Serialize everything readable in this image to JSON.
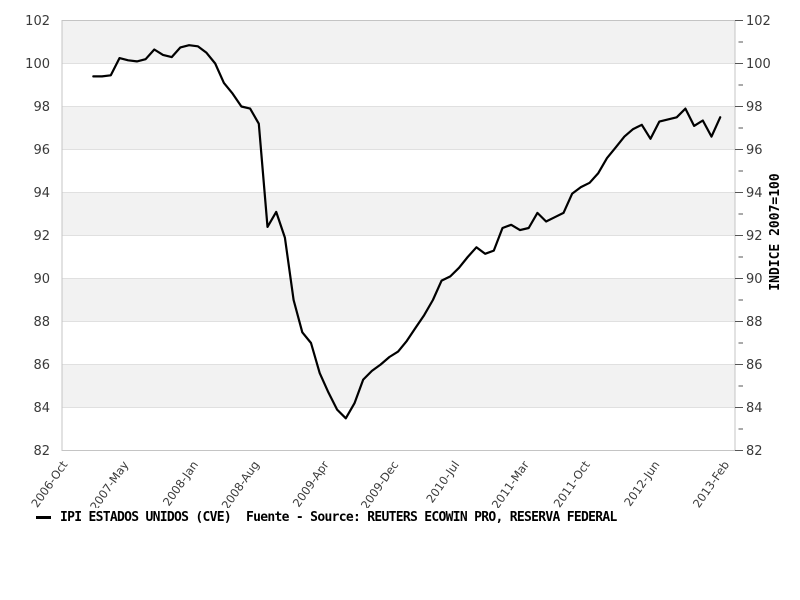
{
  "page": {
    "background": "#ffffff"
  },
  "legend": {
    "series_label": "IPI ESTADOS UNIDOS (CVE)",
    "source_label": "Fuente - Source: REUTERS ECOWIN PRO, RESERVA FEDERAL"
  },
  "chart_data": {
    "type": "line",
    "title": "",
    "right_axis_label": "INDICE 2007=100",
    "ylim": [
      82,
      102
    ],
    "y_tick_step": 2,
    "grid": "horizontal-bands-alternating",
    "legend_position": "bottom-left",
    "colors": {
      "band": "#f2f2f2",
      "grid": "#e0e0e0",
      "frame": "#c4c4c4",
      "tick": "#555555",
      "text": "#3a3a3a",
      "line": "#000000"
    },
    "x_axis": {
      "start_label": "2006-Oct",
      "end_label": "2013-Feb",
      "tick_labels": [
        "2006-Oct",
        "2007-May",
        "2008-Jan",
        "2008-Aug",
        "2009-Apr",
        "2009-Dec",
        "2010-Jul",
        "2011-Mar",
        "2011-Oct",
        "2012-Jun",
        "2013-Feb"
      ],
      "tick_month_offsets": [
        0,
        7,
        15,
        22,
        30,
        38,
        45,
        53,
        60,
        68,
        76
      ],
      "axis_month_span": 77.3
    },
    "series": [
      {
        "name": "IPI ESTADOS UNIDOS (CVE)",
        "color": "#000000",
        "start_month": "2007-Jan",
        "start_month_offset": 3.6,
        "months": [
          "2007-Jan",
          "2007-Feb",
          "2007-Mar",
          "2007-Apr",
          "2007-May",
          "2007-Jun",
          "2007-Jul",
          "2007-Aug",
          "2007-Sep",
          "2007-Oct",
          "2007-Nov",
          "2007-Dec",
          "2008-Jan",
          "2008-Feb",
          "2008-Mar",
          "2008-Apr",
          "2008-May",
          "2008-Jun",
          "2008-Jul",
          "2008-Aug",
          "2008-Sep",
          "2008-Oct",
          "2008-Nov",
          "2008-Dec",
          "2009-Jan",
          "2009-Feb",
          "2009-Mar",
          "2009-Apr",
          "2009-May",
          "2009-Jun",
          "2009-Jul",
          "2009-Aug",
          "2009-Sep",
          "2009-Oct",
          "2009-Nov",
          "2009-Dec",
          "2010-Jan",
          "2010-Feb",
          "2010-Mar",
          "2010-Apr",
          "2010-May",
          "2010-Jun",
          "2010-Jul",
          "2010-Aug",
          "2010-Sep",
          "2010-Oct",
          "2010-Nov",
          "2010-Dec",
          "2011-Jan",
          "2011-Feb",
          "2011-Mar",
          "2011-Apr",
          "2011-May",
          "2011-Jun",
          "2011-Jul",
          "2011-Aug",
          "2011-Sep",
          "2011-Oct",
          "2011-Nov",
          "2011-Dec",
          "2012-Jan",
          "2012-Feb",
          "2012-Mar",
          "2012-Apr",
          "2012-May",
          "2012-Jun",
          "2012-Jul",
          "2012-Aug",
          "2012-Sep",
          "2012-Oct",
          "2012-Nov",
          "2012-Dec",
          "2013-Jan"
        ],
        "values": [
          99.4,
          99.4,
          99.45,
          100.25,
          100.15,
          100.1,
          100.2,
          100.65,
          100.4,
          100.3,
          100.75,
          100.85,
          100.8,
          100.5,
          100.0,
          99.1,
          98.6,
          98.0,
          97.9,
          97.2,
          92.4,
          93.1,
          91.9,
          89.0,
          87.5,
          87.0,
          85.6,
          84.7,
          83.9,
          83.5,
          84.2,
          85.3,
          85.7,
          86.0,
          86.35,
          86.6,
          87.1,
          87.7,
          88.3,
          89.0,
          89.9,
          90.1,
          90.5,
          91.0,
          91.45,
          91.15,
          91.3,
          92.35,
          92.5,
          92.25,
          92.35,
          93.05,
          92.65,
          92.85,
          93.05,
          93.95,
          94.25,
          94.45,
          94.9,
          95.6,
          96.1,
          96.6,
          96.95,
          97.15,
          96.5,
          97.3,
          97.4,
          97.5,
          97.9,
          97.1,
          97.35,
          96.6,
          97.5
        ]
      }
    ]
  }
}
